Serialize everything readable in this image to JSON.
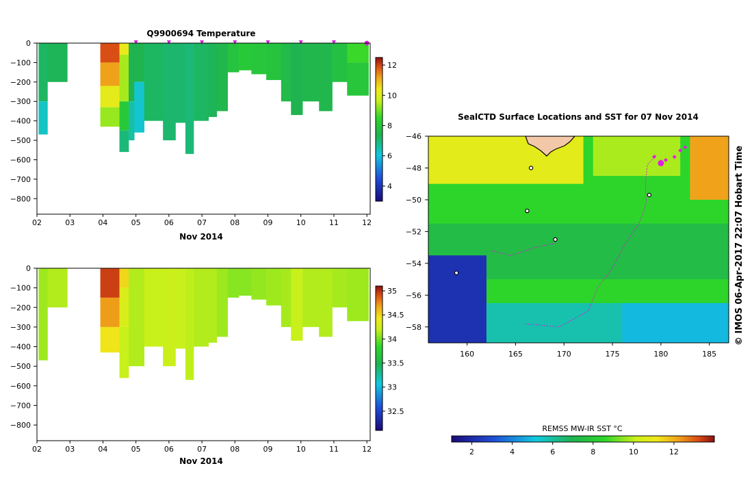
{
  "chart_data": [
    {
      "type": "heatmap",
      "title": "Q9900694  Temperature",
      "xlabel": "Nov 2014",
      "ylabel": "",
      "x_ticks": [
        "02",
        "03",
        "04",
        "05",
        "06",
        "07",
        "08",
        "09",
        "10",
        "11",
        "12"
      ],
      "x_range": [
        2,
        12.1
      ],
      "y_ticks": [
        0,
        -100,
        -200,
        -300,
        -400,
        -500,
        -600,
        -700,
        -800
      ],
      "y_range": [
        0,
        -880
      ],
      "colorbar": {
        "min": 3,
        "max": 12.5,
        "ticks": [
          4,
          6,
          8,
          10,
          12
        ]
      },
      "profile_markers": [
        5,
        6,
        7,
        8,
        9,
        10,
        11,
        12
      ],
      "profiles": [
        {
          "start": 2.05,
          "end": 2.32,
          "max_depth": 470,
          "bands": [
            [
              0,
              300,
              7.2
            ],
            [
              300,
              470,
              6.3
            ]
          ]
        },
        {
          "start": 2.32,
          "end": 2.92,
          "max_depth": 200,
          "bands": [
            [
              0,
              200,
              7.3
            ]
          ]
        },
        {
          "start": 3.92,
          "end": 4.5,
          "max_depth": 430,
          "bands": [
            [
              0,
              100,
              11.9
            ],
            [
              100,
              220,
              11.2
            ],
            [
              220,
              330,
              10.2
            ],
            [
              330,
              430,
              9.3
            ]
          ]
        },
        {
          "start": 4.5,
          "end": 4.78,
          "max_depth": 560,
          "bands": [
            [
              0,
              60,
              10.3
            ],
            [
              60,
              300,
              9.4
            ],
            [
              300,
              450,
              8.1
            ],
            [
              450,
              560,
              7.0
            ]
          ]
        },
        {
          "start": 4.78,
          "end": 4.95,
          "max_depth": 500,
          "bands": [
            [
              0,
              300,
              7.4
            ],
            [
              300,
              500,
              6.6
            ]
          ]
        },
        {
          "start": 4.95,
          "end": 5.25,
          "max_depth": 460,
          "bands": [
            [
              0,
              200,
              7.4
            ],
            [
              200,
              460,
              6.2
            ]
          ]
        },
        {
          "start": 5.25,
          "end": 5.82,
          "max_depth": 400,
          "bands": [
            [
              0,
              400,
              7.2
            ]
          ]
        },
        {
          "start": 5.82,
          "end": 6.2,
          "max_depth": 500,
          "bands": [
            [
              0,
              500,
              7.1
            ]
          ]
        },
        {
          "start": 6.2,
          "end": 6.5,
          "max_depth": 410,
          "bands": [
            [
              0,
              410,
              7.1
            ]
          ]
        },
        {
          "start": 6.5,
          "end": 6.75,
          "max_depth": 570,
          "bands": [
            [
              0,
              570,
              7.0
            ]
          ]
        },
        {
          "start": 6.75,
          "end": 7.2,
          "max_depth": 400,
          "bands": [
            [
              0,
              400,
              7.2
            ]
          ]
        },
        {
          "start": 7.2,
          "end": 7.45,
          "max_depth": 380,
          "bands": [
            [
              0,
              380,
              7.3
            ]
          ]
        },
        {
          "start": 7.45,
          "end": 7.78,
          "max_depth": 350,
          "bands": [
            [
              0,
              350,
              7.5
            ]
          ]
        },
        {
          "start": 7.78,
          "end": 8.12,
          "max_depth": 150,
          "bands": [
            [
              0,
              150,
              7.9
            ]
          ]
        },
        {
          "start": 8.12,
          "end": 8.5,
          "max_depth": 140,
          "bands": [
            [
              0,
              140,
              8.1
            ]
          ]
        },
        {
          "start": 8.5,
          "end": 8.95,
          "max_depth": 160,
          "bands": [
            [
              0,
              160,
              8.0
            ]
          ]
        },
        {
          "start": 8.95,
          "end": 9.4,
          "max_depth": 190,
          "bands": [
            [
              0,
              190,
              7.9
            ]
          ]
        },
        {
          "start": 9.4,
          "end": 9.7,
          "max_depth": 300,
          "bands": [
            [
              0,
              300,
              7.6
            ]
          ]
        },
        {
          "start": 9.7,
          "end": 10.05,
          "max_depth": 370,
          "bands": [
            [
              0,
              370,
              7.4
            ]
          ]
        },
        {
          "start": 10.05,
          "end": 10.55,
          "max_depth": 300,
          "bands": [
            [
              0,
              300,
              7.5
            ]
          ]
        },
        {
          "start": 10.55,
          "end": 10.95,
          "max_depth": 350,
          "bands": [
            [
              0,
              350,
              7.5
            ]
          ]
        },
        {
          "start": 10.95,
          "end": 11.4,
          "max_depth": 200,
          "bands": [
            [
              0,
              200,
              7.8
            ]
          ]
        },
        {
          "start": 11.4,
          "end": 12.05,
          "max_depth": 270,
          "bands": [
            [
              0,
              100,
              8.6
            ],
            [
              100,
              270,
              8.0
            ]
          ]
        }
      ]
    },
    {
      "type": "heatmap",
      "title": "",
      "xlabel": "Nov 2014",
      "ylabel": "",
      "x_ticks": [
        "02",
        "03",
        "04",
        "05",
        "06",
        "07",
        "08",
        "09",
        "10",
        "11",
        "12"
      ],
      "x_range": [
        2,
        12.1
      ],
      "y_ticks": [
        0,
        -100,
        -200,
        -300,
        -400,
        -500,
        -600,
        -700,
        -800
      ],
      "y_range": [
        0,
        -880
      ],
      "colorbar": {
        "min": 32.1,
        "max": 35.1,
        "ticks": [
          32.5,
          33,
          33.5,
          34,
          34.5,
          35
        ]
      },
      "profiles": [
        {
          "start": 2.05,
          "end": 2.32,
          "max_depth": 470,
          "bands": [
            [
              0,
              470,
              34.1
            ]
          ]
        },
        {
          "start": 2.32,
          "end": 2.92,
          "max_depth": 200,
          "bands": [
            [
              0,
              200,
              34.15
            ]
          ]
        },
        {
          "start": 3.92,
          "end": 4.5,
          "max_depth": 430,
          "bands": [
            [
              0,
              150,
              34.95
            ],
            [
              150,
              300,
              34.7
            ],
            [
              300,
              430,
              34.45
            ]
          ]
        },
        {
          "start": 4.5,
          "end": 4.78,
          "max_depth": 560,
          "bands": [
            [
              0,
              100,
              34.5
            ],
            [
              100,
              300,
              34.3
            ],
            [
              300,
              560,
              34.2
            ]
          ]
        },
        {
          "start": 4.78,
          "end": 5.25,
          "max_depth": 500,
          "bands": [
            [
              0,
              500,
              34.15
            ]
          ]
        },
        {
          "start": 5.25,
          "end": 5.82,
          "max_depth": 400,
          "bands": [
            [
              0,
              400,
              34.2
            ]
          ]
        },
        {
          "start": 5.82,
          "end": 6.2,
          "max_depth": 500,
          "bands": [
            [
              0,
              500,
              34.22
            ]
          ]
        },
        {
          "start": 6.2,
          "end": 6.5,
          "max_depth": 410,
          "bands": [
            [
              0,
              410,
              34.2
            ]
          ]
        },
        {
          "start": 6.5,
          "end": 6.75,
          "max_depth": 570,
          "bands": [
            [
              0,
              570,
              34.18
            ]
          ]
        },
        {
          "start": 6.75,
          "end": 7.2,
          "max_depth": 400,
          "bands": [
            [
              0,
              400,
              34.15
            ]
          ]
        },
        {
          "start": 7.2,
          "end": 7.45,
          "max_depth": 380,
          "bands": [
            [
              0,
              380,
              34.15
            ]
          ]
        },
        {
          "start": 7.45,
          "end": 7.78,
          "max_depth": 350,
          "bands": [
            [
              0,
              350,
              34.1
            ]
          ]
        },
        {
          "start": 7.78,
          "end": 8.12,
          "max_depth": 150,
          "bands": [
            [
              0,
              150,
              34.05
            ]
          ]
        },
        {
          "start": 8.12,
          "end": 8.5,
          "max_depth": 140,
          "bands": [
            [
              0,
              140,
              34.05
            ]
          ]
        },
        {
          "start": 8.5,
          "end": 8.95,
          "max_depth": 160,
          "bands": [
            [
              0,
              160,
              34.08
            ]
          ]
        },
        {
          "start": 8.95,
          "end": 9.4,
          "max_depth": 190,
          "bands": [
            [
              0,
              190,
              34.1
            ]
          ]
        },
        {
          "start": 9.4,
          "end": 9.7,
          "max_depth": 300,
          "bands": [
            [
              0,
              300,
              34.12
            ]
          ]
        },
        {
          "start": 9.7,
          "end": 10.05,
          "max_depth": 370,
          "bands": [
            [
              0,
              370,
              34.2
            ]
          ]
        },
        {
          "start": 10.05,
          "end": 10.55,
          "max_depth": 300,
          "bands": [
            [
              0,
              300,
              34.15
            ]
          ]
        },
        {
          "start": 10.55,
          "end": 10.95,
          "max_depth": 350,
          "bands": [
            [
              0,
              350,
              34.15
            ]
          ]
        },
        {
          "start": 10.95,
          "end": 11.4,
          "max_depth": 200,
          "bands": [
            [
              0,
              200,
              34.12
            ]
          ]
        },
        {
          "start": 11.4,
          "end": 12.05,
          "max_depth": 270,
          "bands": [
            [
              0,
              270,
              34.1
            ]
          ]
        }
      ]
    },
    {
      "type": "heatmap",
      "title": "SealCTD Surface Locations and SST for 07 Nov 2014",
      "xlabel": "",
      "ylabel": "",
      "x_ticks": [
        160,
        165,
        170,
        175,
        180,
        185
      ],
      "x_range": [
        156,
        187
      ],
      "y_ticks": [
        -46,
        -48,
        -50,
        -52,
        -54,
        -56,
        -58
      ],
      "y_range": [
        -46,
        -59
      ],
      "stamp": "© IMOS 06-Apr-2017 22:07 Hobart Time",
      "colorbar": {
        "title": "REMSS MW-IR SST °C",
        "min": 1,
        "max": 14,
        "ticks": [
          2,
          4,
          6,
          8,
          10,
          12
        ]
      },
      "sst_regions": [
        {
          "lon": [
            156,
            187
          ],
          "lat": [
            -46,
            -59
          ],
          "sst": 8.5
        },
        {
          "lon": [
            156,
            172
          ],
          "lat": [
            -46,
            -49
          ],
          "sst": 10.8
        },
        {
          "lon": [
            183,
            187
          ],
          "lat": [
            -46,
            -50
          ],
          "sst": 12.2
        },
        {
          "lon": [
            173,
            182
          ],
          "lat": [
            -46,
            -48.5
          ],
          "sst": 9.8
        },
        {
          "lon": [
            156,
            187
          ],
          "lat": [
            -51.5,
            -55
          ],
          "sst": 7.4
        },
        {
          "lon": [
            156,
            162
          ],
          "lat": [
            -53.5,
            -59
          ],
          "sst": 2.2
        },
        {
          "lon": [
            162,
            187
          ],
          "lat": [
            -56.5,
            -59
          ],
          "sst": 5.8
        },
        {
          "lon": [
            176,
            187
          ],
          "lat": [
            -56.5,
            -59
          ],
          "sst": 4.9
        }
      ],
      "track": [
        [
          179.5,
          -47.2
        ],
        [
          178.6,
          -47.8
        ],
        [
          178.4,
          -49.0
        ],
        [
          178.5,
          -50.2
        ],
        [
          177.8,
          -51.4
        ],
        [
          176.2,
          -52.9
        ],
        [
          175.0,
          -54.3
        ],
        [
          173.5,
          -55.5
        ],
        [
          172.5,
          -57.0
        ],
        [
          169.5,
          -58.0
        ],
        [
          166.0,
          -57.8
        ]
      ],
      "track2": [
        [
          162.5,
          -53.2
        ],
        [
          164.5,
          -53.5
        ],
        [
          167.0,
          -53.0
        ],
        [
          169.3,
          -52.7
        ]
      ],
      "seal_points": [
        [
          179.3,
          -47.3
        ],
        [
          180.0,
          -47.6
        ],
        [
          180.5,
          -47.5
        ],
        [
          181.4,
          -47.3
        ],
        [
          182.0,
          -46.9
        ],
        [
          182.5,
          -46.7
        ]
      ],
      "current_point": [
        180.0,
        -47.7
      ],
      "islands": [
        [
          166.2,
          -50.7
        ],
        [
          169.1,
          -52.5
        ],
        [
          158.9,
          -54.6
        ],
        [
          178.8,
          -49.7
        ],
        [
          166.6,
          -48.0
        ]
      ]
    }
  ]
}
